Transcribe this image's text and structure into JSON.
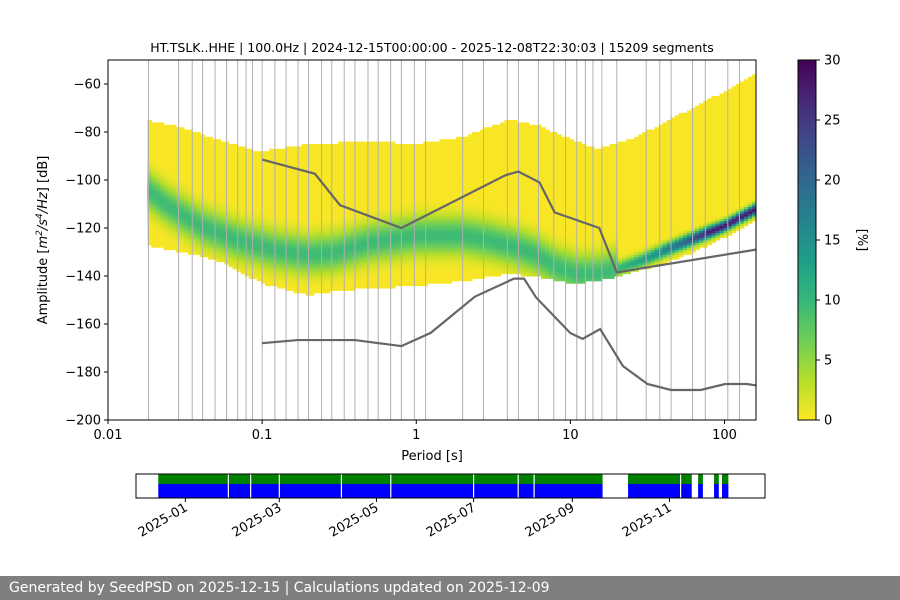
{
  "chart_data": {
    "type": "heatmap",
    "title": "HT.TSLK..HHE | 100.0Hz | 2024-12-15T00:00:00 - 2025-12-08T22:30:03 | 15209 segments",
    "xlabel": "Period [s]",
    "ylabel_parts": [
      "Amplitude [",
      "m",
      "2",
      "/",
      "s",
      "4",
      "/",
      "Hz",
      "] [dB]"
    ],
    "x_scale": "log",
    "xlim": [
      0.01,
      160
    ],
    "ylim": [
      -200,
      -50
    ],
    "xticks": [
      {
        "value": 0.01,
        "label": "0.01"
      },
      {
        "value": 0.1,
        "label": "0.1"
      },
      {
        "value": 1,
        "label": "1"
      },
      {
        "value": 10,
        "label": "10"
      },
      {
        "value": 100,
        "label": "100"
      }
    ],
    "yticks": [
      {
        "value": -60,
        "label": "−60"
      },
      {
        "value": -80,
        "label": "−80"
      },
      {
        "value": -100,
        "label": "−100"
      },
      {
        "value": -120,
        "label": "−120"
      },
      {
        "value": -140,
        "label": "−140"
      },
      {
        "value": -160,
        "label": "−160"
      },
      {
        "value": -180,
        "label": "−180"
      },
      {
        "value": -200,
        "label": "−200"
      }
    ],
    "grid_periods": [
      0.0183,
      0.0287,
      0.0352,
      0.0411,
      0.0495,
      0.0588,
      0.0694,
      0.0787,
      0.0865,
      0.1,
      0.121,
      0.143,
      0.171,
      0.2,
      0.243,
      0.283,
      0.341,
      0.4,
      0.486,
      0.566,
      0.682,
      0.8,
      0.972,
      1.15,
      2.0,
      2.73,
      3.9,
      4.6,
      6.2,
      7.8,
      9.3,
      11.0,
      12.5,
      14.0,
      16.0,
      20.0,
      31.0,
      38.0,
      45.0,
      62.0,
      75.0,
      105.0,
      125.0
    ],
    "median_curve": [
      {
        "period": 0.018,
        "db": -104
      },
      {
        "period": 0.025,
        "db": -111
      },
      {
        "period": 0.04,
        "db": -119
      },
      {
        "period": 0.07,
        "db": -125
      },
      {
        "period": 0.12,
        "db": -129
      },
      {
        "period": 0.2,
        "db": -131
      },
      {
        "period": 0.3,
        "db": -130
      },
      {
        "period": 0.5,
        "db": -126
      },
      {
        "period": 1.0,
        "db": -123
      },
      {
        "period": 2.0,
        "db": -123
      },
      {
        "period": 3.0,
        "db": -125
      },
      {
        "period": 4.5,
        "db": -128
      },
      {
        "period": 6.0,
        "db": -131
      },
      {
        "period": 8.0,
        "db": -136
      },
      {
        "period": 11.0,
        "db": -139
      },
      {
        "period": 15.0,
        "db": -139
      },
      {
        "period": 20.0,
        "db": -137
      },
      {
        "period": 30.0,
        "db": -133
      },
      {
        "period": 45.0,
        "db": -128
      },
      {
        "period": 70.0,
        "db": -123
      },
      {
        "period": 100.0,
        "db": -119
      },
      {
        "period": 160.0,
        "db": -112
      }
    ],
    "upper_envelope": [
      {
        "period": 0.018,
        "db": -75
      },
      {
        "period": 0.03,
        "db": -78
      },
      {
        "period": 0.05,
        "db": -83
      },
      {
        "period": 0.08,
        "db": -87
      },
      {
        "period": 0.1,
        "db": -88
      },
      {
        "period": 0.2,
        "db": -85
      },
      {
        "period": 0.5,
        "db": -84
      },
      {
        "period": 1.0,
        "db": -85
      },
      {
        "period": 2.0,
        "db": -82
      },
      {
        "period": 4.0,
        "db": -75
      },
      {
        "period": 6.0,
        "db": -77
      },
      {
        "period": 10.0,
        "db": -83
      },
      {
        "period": 15.0,
        "db": -87
      },
      {
        "period": 25.0,
        "db": -83
      },
      {
        "period": 50.0,
        "db": -73
      },
      {
        "period": 100.0,
        "db": -63
      },
      {
        "period": 160.0,
        "db": -56
      }
    ],
    "lower_envelope": [
      {
        "period": 0.018,
        "db": -127
      },
      {
        "period": 0.05,
        "db": -133
      },
      {
        "period": 0.1,
        "db": -143
      },
      {
        "period": 0.2,
        "db": -148
      },
      {
        "period": 0.3,
        "db": -146
      },
      {
        "period": 0.5,
        "db": -145
      },
      {
        "period": 1.0,
        "db": -144
      },
      {
        "period": 2.0,
        "db": -142
      },
      {
        "period": 4.0,
        "db": -139
      },
      {
        "period": 6.0,
        "db": -140
      },
      {
        "period": 10.0,
        "db": -143
      },
      {
        "period": 15.0,
        "db": -142
      },
      {
        "period": 20.0,
        "db": -140
      },
      {
        "period": 40.0,
        "db": -135
      },
      {
        "period": 80.0,
        "db": -127
      },
      {
        "period": 160.0,
        "db": -117
      }
    ],
    "nhnm": [
      {
        "period": 0.1,
        "db": -91.5
      },
      {
        "period": 0.22,
        "db": -97.4
      },
      {
        "period": 0.32,
        "db": -110.5
      },
      {
        "period": 0.8,
        "db": -120
      },
      {
        "period": 3.8,
        "db": -98
      },
      {
        "period": 4.6,
        "db": -96.5
      },
      {
        "period": 6.3,
        "db": -101
      },
      {
        "period": 7.9,
        "db": -113.5
      },
      {
        "period": 15.4,
        "db": -120
      },
      {
        "period": 20.0,
        "db": -138.5
      },
      {
        "period": 160.0,
        "db": -129
      }
    ],
    "nlnm": [
      {
        "period": 0.1,
        "db": -168
      },
      {
        "period": 0.17,
        "db": -166.7
      },
      {
        "period": 0.4,
        "db": -166.7
      },
      {
        "period": 0.8,
        "db": -169.2
      },
      {
        "period": 1.24,
        "db": -163.7
      },
      {
        "period": 2.4,
        "db": -148.6
      },
      {
        "period": 4.3,
        "db": -141.1
      },
      {
        "period": 5.0,
        "db": -141.1
      },
      {
        "period": 6.0,
        "db": -149
      },
      {
        "period": 10.0,
        "db": -163.8
      },
      {
        "period": 12.0,
        "db": -166.2
      },
      {
        "period": 15.6,
        "db": -162.1
      },
      {
        "period": 21.9,
        "db": -177.5
      },
      {
        "period": 31.6,
        "db": -185
      },
      {
        "period": 45.0,
        "db": -187.5
      },
      {
        "period": 70.0,
        "db": -187.5
      },
      {
        "period": 101.0,
        "db": -185
      },
      {
        "period": 140.0,
        "db": -185
      },
      {
        "period": 160.0,
        "db": -185.6
      }
    ],
    "colorbar": {
      "label": "[%]",
      "range": [
        0,
        30
      ],
      "ticks": [
        "0",
        "5",
        "10",
        "15",
        "20",
        "25",
        "30"
      ],
      "colormap": [
        "#fde725",
        "#b5de2b",
        "#6ece58",
        "#35b779",
        "#1f9e89",
        "#26828e",
        "#31688e",
        "#3e4989",
        "#482878",
        "#440154"
      ]
    },
    "model_curve_color": "#666666",
    "availability": {
      "date_ticks": [
        "2025-01",
        "2025-03",
        "2025-05",
        "2025-07",
        "2025-09",
        "2025-11"
      ],
      "date_range": [
        "2024-12-01",
        "2025-12-31"
      ],
      "data_color": "#0000ff",
      "gap_color": "#008000",
      "covered": [
        [
          "2024-12-15",
          "2025-09-20"
        ],
        [
          "2025-10-06",
          "2025-11-15"
        ],
        [
          "2025-11-19",
          "2025-11-22"
        ],
        [
          "2025-11-29",
          "2025-12-02"
        ],
        [
          "2025-12-04",
          "2025-12-08"
        ]
      ],
      "gaps": [
        "2025-01-28",
        "2025-02-11",
        "2025-03-01",
        "2025-04-09",
        "2025-05-10",
        "2025-07-01",
        "2025-07-29",
        "2025-08-08",
        "2025-11-08"
      ]
    }
  },
  "footer": {
    "text": "Generated by SeedPSD on 2025-12-15 | Calculations updated on 2025-12-09"
  }
}
